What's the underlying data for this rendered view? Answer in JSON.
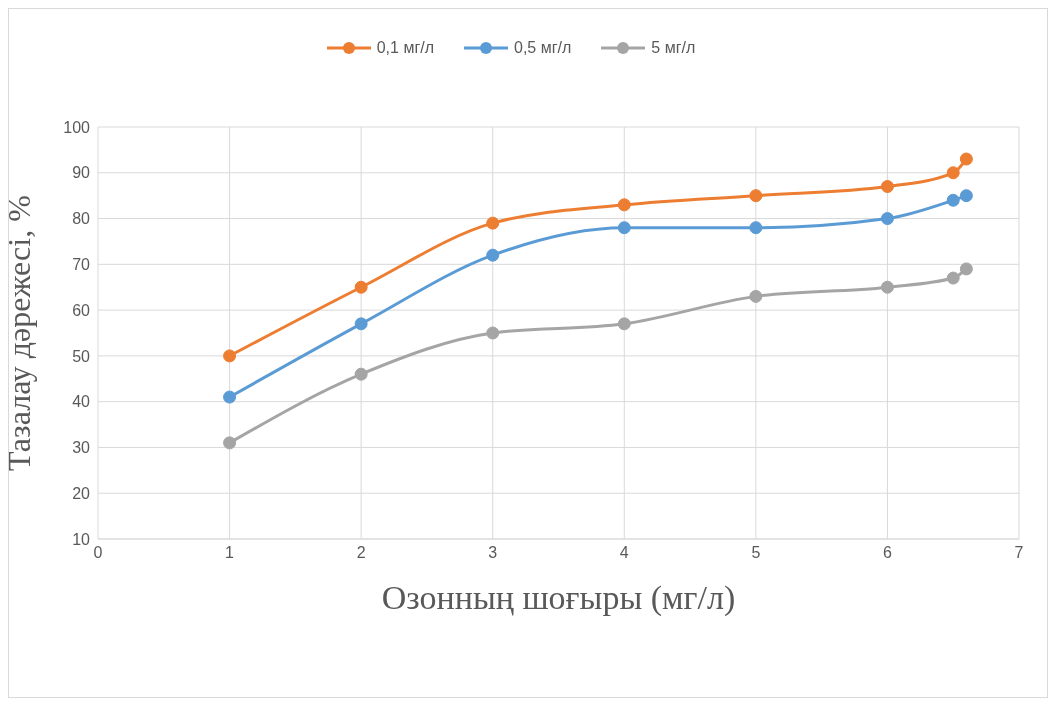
{
  "chart_data": {
    "type": "line",
    "xlabel": "Озонның шоғыры (мг/л)",
    "ylabel": "Тазалау дәрежесі, %",
    "x": [
      1,
      2,
      3,
      4,
      5,
      6,
      6.5,
      6.6
    ],
    "series": [
      {
        "name": "0,1 мг/л",
        "color": "#ed7d31",
        "values": [
          50,
          65,
          79,
          83,
          85,
          87,
          90,
          93
        ]
      },
      {
        "name": "0,5 мг/л",
        "color": "#5b9bd5",
        "values": [
          41,
          57,
          72,
          78,
          78,
          80,
          84,
          85
        ]
      },
      {
        "name": "5 мг/л",
        "color": "#a5a5a5",
        "values": [
          31,
          46,
          55,
          57,
          63,
          65,
          67,
          69
        ]
      }
    ],
    "xlim": [
      0,
      7
    ],
    "xticks": [
      0,
      1,
      2,
      3,
      4,
      5,
      6,
      7
    ],
    "ylim": [
      10,
      100
    ],
    "yticks": [
      10,
      20,
      30,
      40,
      50,
      60,
      70,
      80,
      90,
      100
    ],
    "grid": true,
    "legend": "top",
    "marker": "circle",
    "line_style": "solid"
  }
}
